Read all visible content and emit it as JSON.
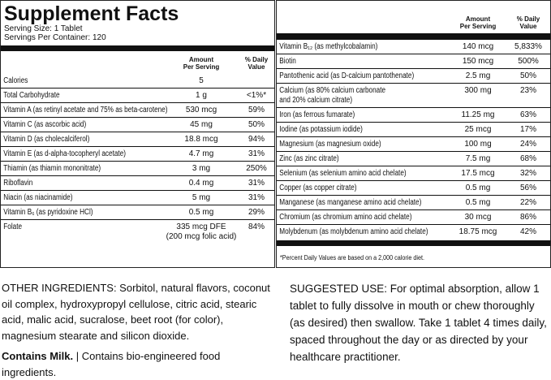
{
  "header": {
    "title": "Supplement Facts",
    "serving_size": "Serving Size: 1 Tablet",
    "servings": "Servings Per Container: 120"
  },
  "left_table": {
    "columns": [
      "Amount\nPer Serving",
      "% Daily\nValue"
    ],
    "rows": [
      [
        "Calories",
        "5",
        ""
      ],
      [
        "Total Carbohydrate",
        "1 g",
        "<1%*"
      ],
      [
        "Vitamin A (as retinyl acetate and 75% as beta-carotene)",
        "530 mcg",
        "59%"
      ],
      [
        "Vitamin C (as ascorbic acid)",
        "45 mg",
        "50%"
      ],
      [
        "Vitamin D (as cholecalciferol)",
        "18.8 mcg",
        "94%"
      ],
      [
        "Vitamin E (as d-alpha-tocopheryl acetate)",
        "4.7 mg",
        "31%"
      ],
      [
        "Thiamin (as thiamin mononitrate)",
        "3 mg",
        "250%"
      ],
      [
        "Riboflavin",
        "0.4 mg",
        "31%"
      ],
      [
        "Niacin (as niacinamide)",
        "5 mg",
        "31%"
      ],
      [
        "Vitamin B₆ (as pyridoxine HCl)",
        "0.5 mg",
        "29%"
      ],
      [
        "Folate",
        "335 mcg DFE\n(200 mcg folic acid)",
        "84%"
      ]
    ]
  },
  "right_table": {
    "columns": [
      "Amount\nPer Serving",
      "% Daily\nValue"
    ],
    "rows": [
      [
        "Vitamin B₁₂ (as methylcobalamin)",
        "140 mcg",
        "5,833%"
      ],
      [
        "Biotin",
        "150 mcg",
        "500%"
      ],
      [
        "Pantothenic acid (as D-calcium pantothenate)",
        "2.5 mg",
        "50%"
      ],
      [
        "Calcium (as 80% calcium carbonate\nand 20% calcium citrate)",
        "300 mg",
        "23%"
      ],
      [
        "Iron (as ferrous fumarate)",
        "11.25 mg",
        "63%"
      ],
      [
        "Iodine (as potassium iodide)",
        "25 mcg",
        "17%"
      ],
      [
        "Magnesium (as magnesium oxide)",
        "100 mg",
        "24%"
      ],
      [
        "Zinc (as zinc citrate)",
        "7.5 mg",
        "68%"
      ],
      [
        "Selenium (as selenium amino acid chelate)",
        "17.5 mcg",
        "32%"
      ],
      [
        "Copper (as copper citrate)",
        "0.5 mg",
        "56%"
      ],
      [
        "Manganese (as manganese amino acid chelate)",
        "0.5 mg",
        "22%"
      ],
      [
        "Chromium (as chromium amino acid chelate)",
        "30 mcg",
        "86%"
      ],
      [
        "Molybdenum (as molybdenum amino acid chelate)",
        "18.75 mcg",
        "42%"
      ]
    ],
    "footnote": "*Percent Daily Values are based on a 2,000 calorie diet."
  },
  "other_ingredients": "OTHER INGREDIENTS: Sorbitol, natural flavors, coconut oil complex, hydroxypropyl cellulose, citric acid, stearic acid, malic acid, sucralose, beet root (for color), magnesium stearate and silicon dioxide.",
  "contains": {
    "bold": "Contains Milk.",
    "rest": "| Contains bio-engineered food ingredients."
  },
  "suggested_use": "SUGGESTED USE: For optimal absorption, allow 1 tablet to fully dissolve in mouth or chew thoroughly (as desired) then swallow. Take 1 tablet 4 times daily, spaced throughout the day or as directed by your healthcare practitioner."
}
